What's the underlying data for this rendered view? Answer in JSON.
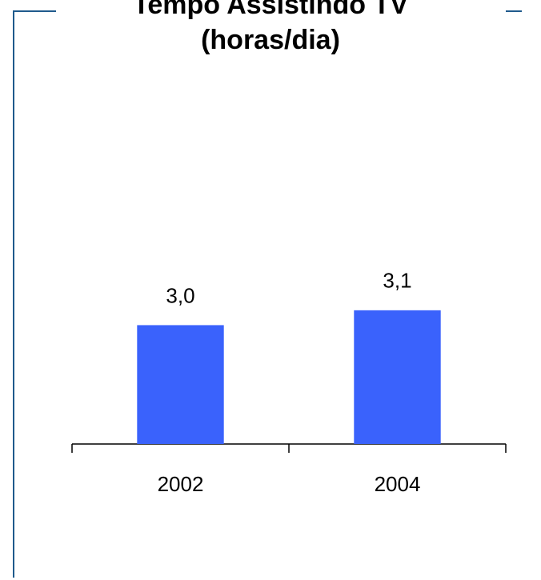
{
  "chart_data": {
    "type": "bar",
    "title": [
      "Tempo Assistindo TV",
      "(horas/dia)"
    ],
    "categories": [
      "2002",
      "2004"
    ],
    "values": [
      3.0,
      3.1
    ],
    "value_labels": [
      "3,0",
      "3,1"
    ],
    "color": "#3a62fc",
    "ylim": [
      2.2,
      3.6
    ]
  }
}
